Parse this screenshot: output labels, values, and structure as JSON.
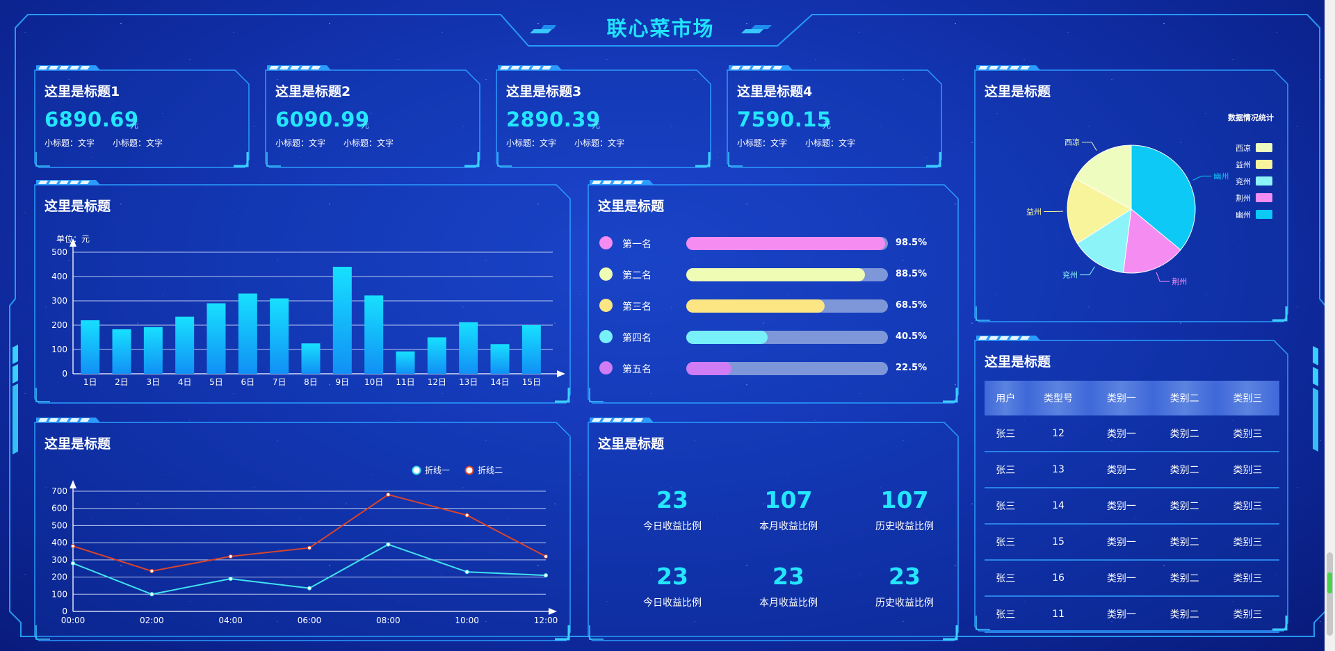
{
  "page": {
    "title": "联心菜市场"
  },
  "cards": [
    {
      "title": "这里是标题1",
      "value": "6890.69",
      "unit": "元",
      "sub1": "小标题：文字",
      "sub2": "小标题：文字"
    },
    {
      "title": "这里是标题2",
      "value": "6090.99",
      "unit": "元",
      "sub1": "小标题：文字",
      "sub2": "小标题：文字"
    },
    {
      "title": "这里是标题3",
      "value": "2890.39",
      "unit": "元",
      "sub1": "小标题：文字",
      "sub2": "小标题：文字"
    },
    {
      "title": "这里是标题4",
      "value": "7590.15",
      "unit": "元",
      "sub1": "小标题：文字",
      "sub2": "小标题：文字"
    }
  ],
  "bar_panel": {
    "title": "这里是标题"
  },
  "rank_panel": {
    "title": "这里是标题",
    "items": [
      {
        "name": "第一名",
        "pct": "98.5%",
        "value": 98.5,
        "color": "#f58cf2"
      },
      {
        "name": "第二名",
        "pct": "88.5%",
        "value": 88.5,
        "color": "#eefcb4"
      },
      {
        "name": "第三名",
        "pct": "68.5%",
        "value": 68.5,
        "color": "#fbe683"
      },
      {
        "name": "第四名",
        "pct": "40.5%",
        "value": 40.5,
        "color": "#78f0f9"
      },
      {
        "name": "第五名",
        "pct": "22.5%",
        "value": 22.5,
        "color": "#cf7cf5"
      }
    ]
  },
  "pie_panel": {
    "title": "这里是标题"
  },
  "line_panel": {
    "title": "这里是标题"
  },
  "stats_panel": {
    "title": "这里是标题",
    "items": [
      {
        "value": "23",
        "label": "今日收益比例"
      },
      {
        "value": "107",
        "label": "本月收益比例"
      },
      {
        "value": "107",
        "label": "历史收益比例"
      },
      {
        "value": "23",
        "label": "今日收益比例"
      },
      {
        "value": "23",
        "label": "本月收益比例"
      },
      {
        "value": "23",
        "label": "历史收益比例"
      }
    ]
  },
  "table_panel": {
    "title": "这里是标题",
    "headers": [
      "用户",
      "类型号",
      "类别一",
      "类别二",
      "类别三"
    ],
    "rows": [
      [
        "张三",
        "12",
        "类别一",
        "类别二",
        "类别三"
      ],
      [
        "张三",
        "13",
        "类别一",
        "类别二",
        "类别三"
      ],
      [
        "张三",
        "14",
        "类别一",
        "类别二",
        "类别三"
      ],
      [
        "张三",
        "15",
        "类别一",
        "类别二",
        "类别三"
      ],
      [
        "张三",
        "16",
        "类别一",
        "类别二",
        "类别三"
      ],
      [
        "张三",
        "11",
        "类别一",
        "类别二",
        "类别三"
      ]
    ]
  },
  "chart_data": [
    {
      "type": "bar",
      "title": "",
      "unit_label": "单位：元",
      "categories": [
        "1日",
        "2日",
        "3日",
        "4日",
        "5日",
        "6日",
        "7日",
        "8日",
        "9日",
        "10日",
        "11日",
        "12日",
        "13日",
        "14日",
        "15日"
      ],
      "values": [
        220,
        183,
        192,
        235,
        290,
        330,
        310,
        125,
        440,
        322,
        92,
        150,
        212,
        122,
        200
      ],
      "ylim": [
        0,
        500
      ],
      "yticks": [
        0,
        100,
        200,
        300,
        400,
        500
      ],
      "grid": true
    },
    {
      "type": "line",
      "title": "",
      "x": [
        "00:00",
        "02:00",
        "04:00",
        "06:00",
        "08:00",
        "10:00",
        "12:00"
      ],
      "ylim": [
        0,
        700
      ],
      "yticks": [
        0,
        100,
        200,
        300,
        400,
        500,
        600,
        700
      ],
      "grid": true,
      "legend": "top-right",
      "series": [
        {
          "name": "折线一",
          "color": "#41e2f0",
          "values": [
            280,
            100,
            190,
            135,
            390,
            230,
            210
          ]
        },
        {
          "name": "折线二",
          "color": "#d9442b",
          "values": [
            380,
            235,
            320,
            370,
            680,
            560,
            320
          ]
        }
      ]
    },
    {
      "type": "pie",
      "title": "数据情况统计",
      "legend": "right",
      "slices": [
        {
          "name": "幽州",
          "value": 36,
          "color": "#0ccaf5"
        },
        {
          "name": "荆州",
          "value": 16,
          "color": "#f58cf2"
        },
        {
          "name": "兖州",
          "value": 14,
          "color": "#8cf4f8"
        },
        {
          "name": "益州",
          "value": 17,
          "color": "#f8f49c"
        },
        {
          "name": "西凉",
          "value": 17,
          "color": "#eefcbf"
        }
      ],
      "legend_order": [
        "西凉",
        "益州",
        "兖州",
        "荆州",
        "幽州"
      ]
    }
  ]
}
